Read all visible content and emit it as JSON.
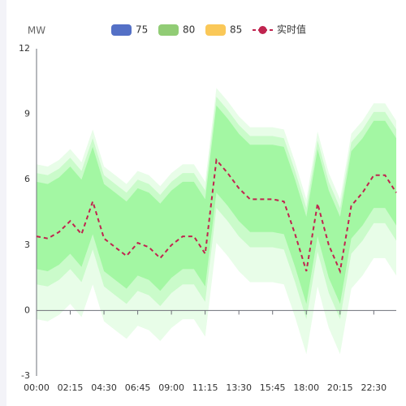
{
  "chart_data": {
    "type": "band-line",
    "y_axis_label": "MW",
    "categories": [
      "00:00",
      null,
      null,
      "02:15",
      null,
      null,
      "04:30",
      null,
      null,
      "06:45",
      null,
      null,
      "09:00",
      null,
      null,
      "11:15",
      null,
      null,
      "13:30",
      null,
      null,
      "15:45",
      null,
      null,
      "18:00",
      null,
      null,
      "20:15",
      null,
      null,
      "22:30",
      null,
      null
    ],
    "ylim": [
      -3,
      12
    ],
    "yticks": [
      -3,
      0,
      3,
      6,
      9,
      12
    ],
    "bands": [
      {
        "name": "75",
        "color": "#5470c6",
        "fill": "#a3f7a3",
        "upper": [
          5.9,
          5.8,
          6.1,
          6.6,
          6.0,
          7.5,
          5.8,
          5.4,
          5.0,
          5.6,
          5.4,
          4.9,
          5.5,
          5.9,
          5.9,
          5.1,
          9.4,
          8.8,
          8.1,
          7.6,
          7.6,
          7.6,
          7.5,
          6.0,
          4.3,
          7.4,
          5.5,
          4.3,
          7.3,
          7.9,
          8.7,
          8.7,
          7.9
        ],
        "lower": [
          1.9,
          1.8,
          2.1,
          2.6,
          2.0,
          3.5,
          1.8,
          1.4,
          1.0,
          1.6,
          1.4,
          0.9,
          1.5,
          1.9,
          1.9,
          1.1,
          5.4,
          4.8,
          4.1,
          3.6,
          3.6,
          3.6,
          3.5,
          2.0,
          0.3,
          3.4,
          1.5,
          0.3,
          3.3,
          3.9,
          4.7,
          4.7,
          3.9
        ]
      },
      {
        "name": "80",
        "color": "#91cc75",
        "fill": "#cafbca",
        "upper": [
          6.3,
          6.2,
          6.5,
          7.0,
          6.4,
          7.9,
          6.2,
          5.8,
          5.4,
          6.0,
          5.8,
          5.3,
          5.9,
          6.3,
          6.3,
          5.5,
          9.8,
          9.2,
          8.5,
          8.0,
          8.0,
          8.0,
          7.9,
          6.4,
          4.7,
          7.8,
          5.9,
          4.7,
          7.7,
          8.3,
          9.1,
          9.1,
          8.3
        ],
        "lower": [
          1.2,
          1.1,
          1.4,
          1.9,
          1.3,
          2.8,
          1.1,
          0.7,
          0.3,
          0.9,
          0.7,
          0.2,
          0.8,
          1.2,
          1.2,
          0.4,
          4.7,
          4.1,
          3.4,
          2.9,
          2.9,
          2.9,
          2.8,
          1.3,
          -0.4,
          2.7,
          0.8,
          -0.4,
          2.6,
          3.2,
          4.0,
          4.0,
          3.2
        ]
      },
      {
        "name": "85",
        "color": "#fac858",
        "fill": "#e8fde8",
        "upper": [
          6.7,
          6.6,
          6.9,
          7.4,
          6.8,
          8.3,
          6.6,
          6.2,
          5.8,
          6.4,
          6.2,
          5.7,
          6.3,
          6.7,
          6.7,
          5.9,
          10.2,
          9.6,
          8.9,
          8.4,
          8.4,
          8.4,
          8.3,
          6.8,
          5.1,
          8.2,
          6.3,
          5.1,
          8.1,
          8.7,
          9.5,
          9.5,
          8.7
        ],
        "lower": [
          -0.4,
          -0.5,
          -0.2,
          0.3,
          -0.3,
          1.2,
          -0.5,
          -0.9,
          -1.3,
          -0.7,
          -0.9,
          -1.4,
          -0.8,
          -0.4,
          -0.4,
          -1.2,
          3.1,
          2.5,
          1.8,
          1.3,
          1.3,
          1.3,
          1.2,
          -0.3,
          -2.0,
          1.1,
          -0.8,
          -2.0,
          1.0,
          1.6,
          2.4,
          2.4,
          1.6
        ]
      }
    ],
    "series": [
      {
        "name": "实时值",
        "color": "#c0244f",
        "values": [
          3.4,
          3.3,
          3.6,
          4.1,
          3.5,
          5.0,
          3.3,
          2.9,
          2.5,
          3.1,
          2.9,
          2.4,
          3.0,
          3.4,
          3.4,
          2.6,
          6.9,
          6.3,
          5.6,
          5.1,
          5.1,
          5.1,
          5.0,
          3.5,
          1.8,
          4.9,
          3.0,
          1.8,
          4.8,
          5.4,
          6.2,
          6.2,
          5.4
        ]
      }
    ]
  }
}
